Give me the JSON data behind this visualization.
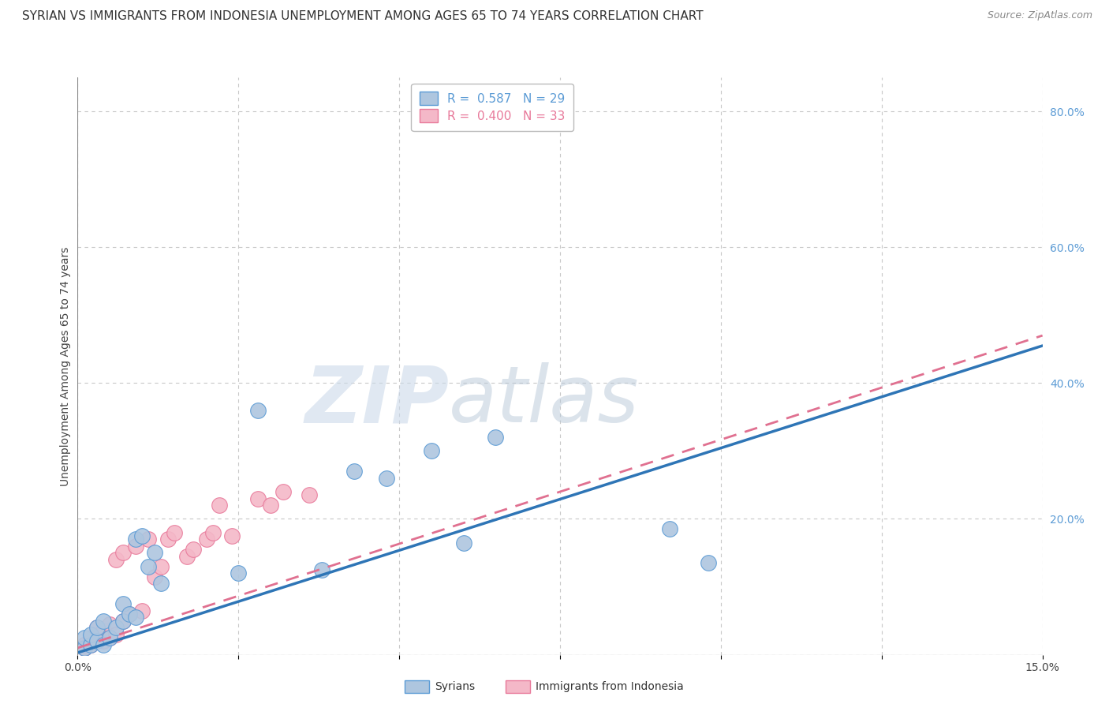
{
  "title": "SYRIAN VS IMMIGRANTS FROM INDONESIA UNEMPLOYMENT AMONG AGES 65 TO 74 YEARS CORRELATION CHART",
  "source": "Source: ZipAtlas.com",
  "xlabel": "",
  "ylabel": "Unemployment Among Ages 65 to 74 years",
  "xlim": [
    0.0,
    0.15
  ],
  "ylim": [
    0.0,
    0.85
  ],
  "x_ticks": [
    0.0,
    0.025,
    0.05,
    0.075,
    0.1,
    0.125,
    0.15
  ],
  "x_tick_labels": [
    "0.0%",
    "",
    "",
    "",
    "",
    "",
    "15.0%"
  ],
  "y_ticks_right": [
    0.0,
    0.2,
    0.4,
    0.6,
    0.8
  ],
  "y_tick_labels_right": [
    "",
    "20.0%",
    "40.0%",
    "60.0%",
    "80.0%"
  ],
  "syrians_color": "#aec6df",
  "syrians_edge_color": "#5b9bd5",
  "indonesia_color": "#f4b8c8",
  "indonesia_edge_color": "#e8799a",
  "trend_syrian_color": "#2e75b6",
  "trend_indonesia_color": "#e07090",
  "trend_indonesia_dash": [
    6,
    4
  ],
  "R_syrian": 0.587,
  "N_syrian": 29,
  "R_indonesia": 0.4,
  "N_indonesia": 33,
  "syrians_x": [
    0.001,
    0.001,
    0.002,
    0.002,
    0.003,
    0.003,
    0.004,
    0.004,
    0.005,
    0.006,
    0.007,
    0.007,
    0.008,
    0.009,
    0.009,
    0.01,
    0.011,
    0.012,
    0.013,
    0.025,
    0.028,
    0.038,
    0.043,
    0.048,
    0.055,
    0.06,
    0.065,
    0.092,
    0.098
  ],
  "syrians_y": [
    0.01,
    0.025,
    0.015,
    0.03,
    0.02,
    0.04,
    0.015,
    0.05,
    0.025,
    0.04,
    0.05,
    0.075,
    0.06,
    0.055,
    0.17,
    0.175,
    0.13,
    0.15,
    0.105,
    0.12,
    0.36,
    0.125,
    0.27,
    0.26,
    0.3,
    0.165,
    0.32,
    0.185,
    0.135
  ],
  "indonesia_x": [
    0.001,
    0.001,
    0.002,
    0.002,
    0.003,
    0.003,
    0.003,
    0.004,
    0.004,
    0.005,
    0.005,
    0.006,
    0.006,
    0.007,
    0.007,
    0.008,
    0.009,
    0.01,
    0.011,
    0.012,
    0.013,
    0.014,
    0.015,
    0.017,
    0.018,
    0.02,
    0.021,
    0.022,
    0.024,
    0.028,
    0.03,
    0.032,
    0.036
  ],
  "indonesia_y": [
    0.01,
    0.015,
    0.015,
    0.025,
    0.02,
    0.03,
    0.04,
    0.02,
    0.035,
    0.025,
    0.045,
    0.03,
    0.14,
    0.05,
    0.15,
    0.06,
    0.16,
    0.065,
    0.17,
    0.115,
    0.13,
    0.17,
    0.18,
    0.145,
    0.155,
    0.17,
    0.18,
    0.22,
    0.175,
    0.23,
    0.22,
    0.24,
    0.235
  ],
  "trend_syrian_x0": 0.0,
  "trend_syrian_y0": 0.003,
  "trend_syrian_x1": 0.15,
  "trend_syrian_y1": 0.455,
  "trend_indonesia_x0": 0.0,
  "trend_indonesia_y0": 0.01,
  "trend_indonesia_x1": 0.15,
  "trend_indonesia_y1": 0.47,
  "watermark_zip": "ZIP",
  "watermark_atlas": "atlas",
  "background_color": "#ffffff",
  "grid_color": "#c8c8c8",
  "title_fontsize": 11,
  "label_fontsize": 10,
  "tick_fontsize": 10,
  "legend_fontsize": 11
}
